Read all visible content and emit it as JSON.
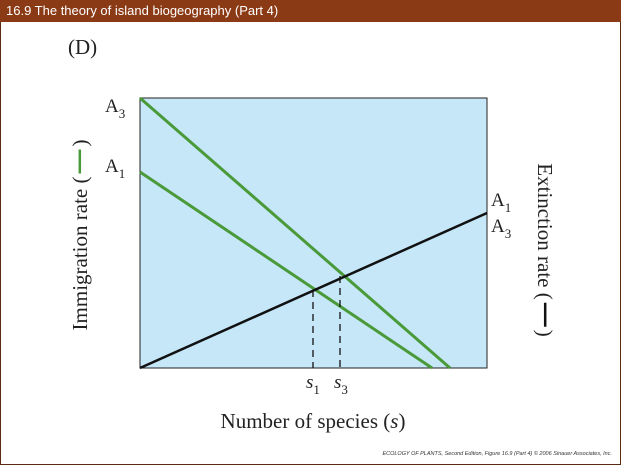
{
  "header": {
    "title": "16.9 The theory of island biogeography (Part 4)"
  },
  "panel_label": "(D)",
  "y_axis_label": {
    "text": "Immigration rate (",
    "close": ")"
  },
  "y2_axis_label": {
    "text": "Extinction rate (",
    "close": ")"
  },
  "x_axis_label": {
    "text": "Number of species (",
    "var": "s",
    "close": ")"
  },
  "left_labels": [
    {
      "letter": "A",
      "sub": "3"
    },
    {
      "letter": "A",
      "sub": "1"
    }
  ],
  "right_labels": [
    {
      "letter": "A",
      "sub": "1"
    },
    {
      "letter": "A",
      "sub": "3"
    }
  ],
  "x_markers": [
    {
      "letter": "s",
      "sub": "1"
    },
    {
      "letter": "s",
      "sub": "3"
    }
  ],
  "footer": "ECOLOGY OF PLANTS, Second Edition, Figure 16.9 (Part 4) © 2006 Sinauer Associates, Inc."
}
